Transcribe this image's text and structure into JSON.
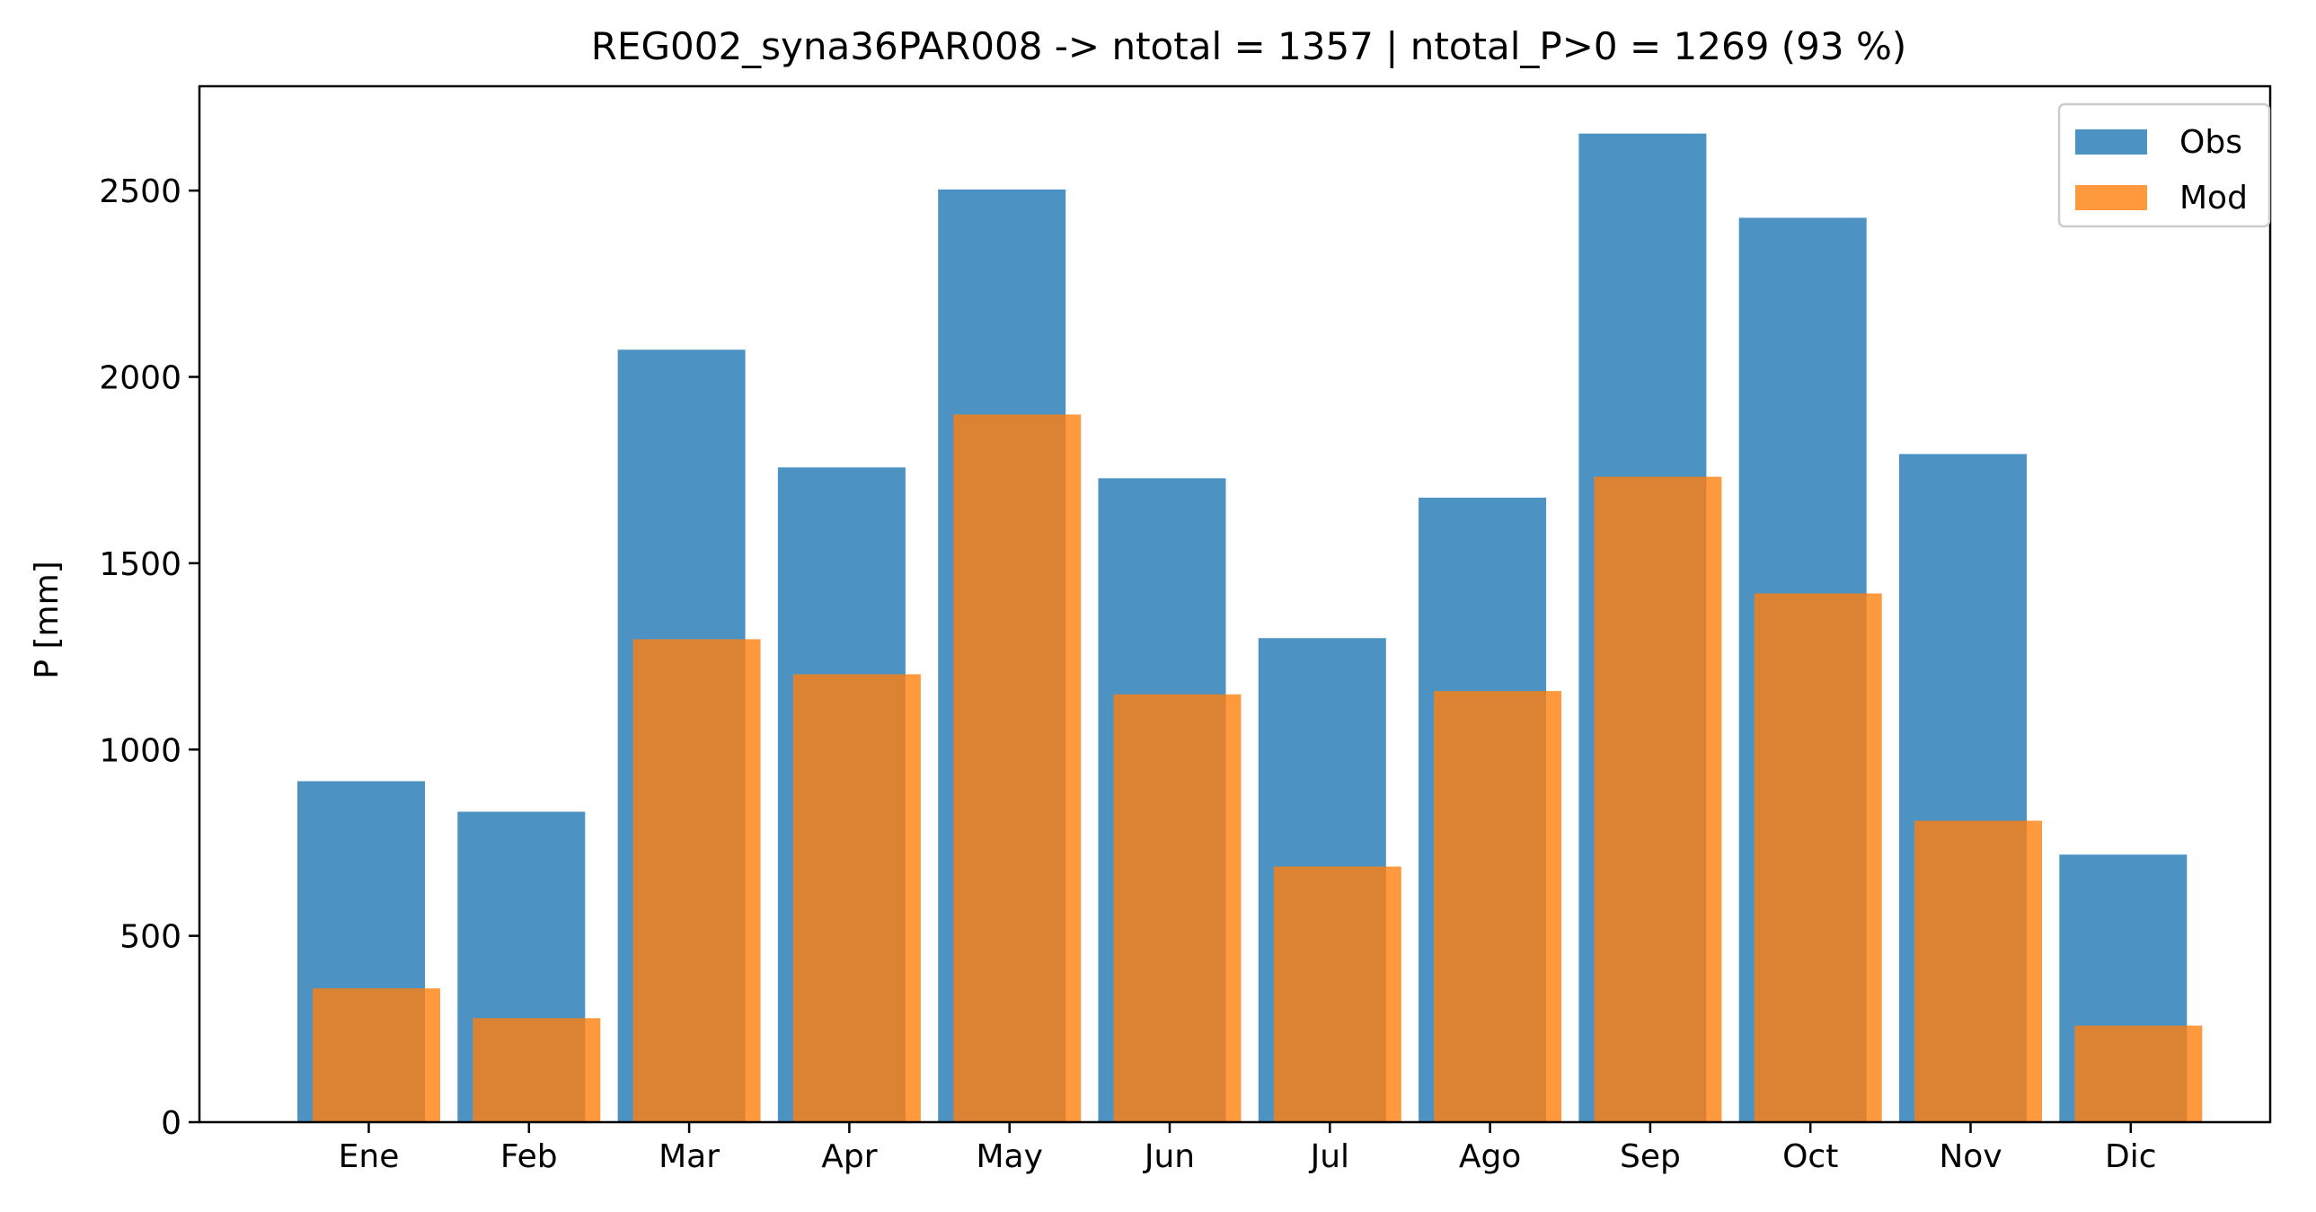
{
  "chart_data": {
    "type": "bar",
    "title": "REG002_syna36PAR008 -> ntotal = 1357 | ntotal_P>0 = 1269 (93 %)",
    "xlabel": "",
    "ylabel": "P [mm]",
    "categories": [
      "Ene",
      "Feb",
      "Mar",
      "Apr",
      "May",
      "Jun",
      "Jul",
      "Ago",
      "Sep",
      "Oct",
      "Nov",
      "Dic"
    ],
    "ylim": [
      0,
      2780
    ],
    "yticks": [
      0,
      500,
      1000,
      1500,
      2000,
      2500
    ],
    "grid": false,
    "legend_position": "top-right",
    "series": [
      {
        "name": "Obs",
        "color": "#1f77b4",
        "values": [
          915,
          833,
          2073,
          1757,
          2503,
          1728,
          1299,
          1676,
          2653,
          2427,
          1793,
          718
        ]
      },
      {
        "name": "Mod",
        "color": "#ff7f0e",
        "values": [
          359,
          279,
          1296,
          1202,
          1899,
          1148,
          686,
          1157,
          1732,
          1419,
          809,
          259
        ]
      }
    ]
  }
}
